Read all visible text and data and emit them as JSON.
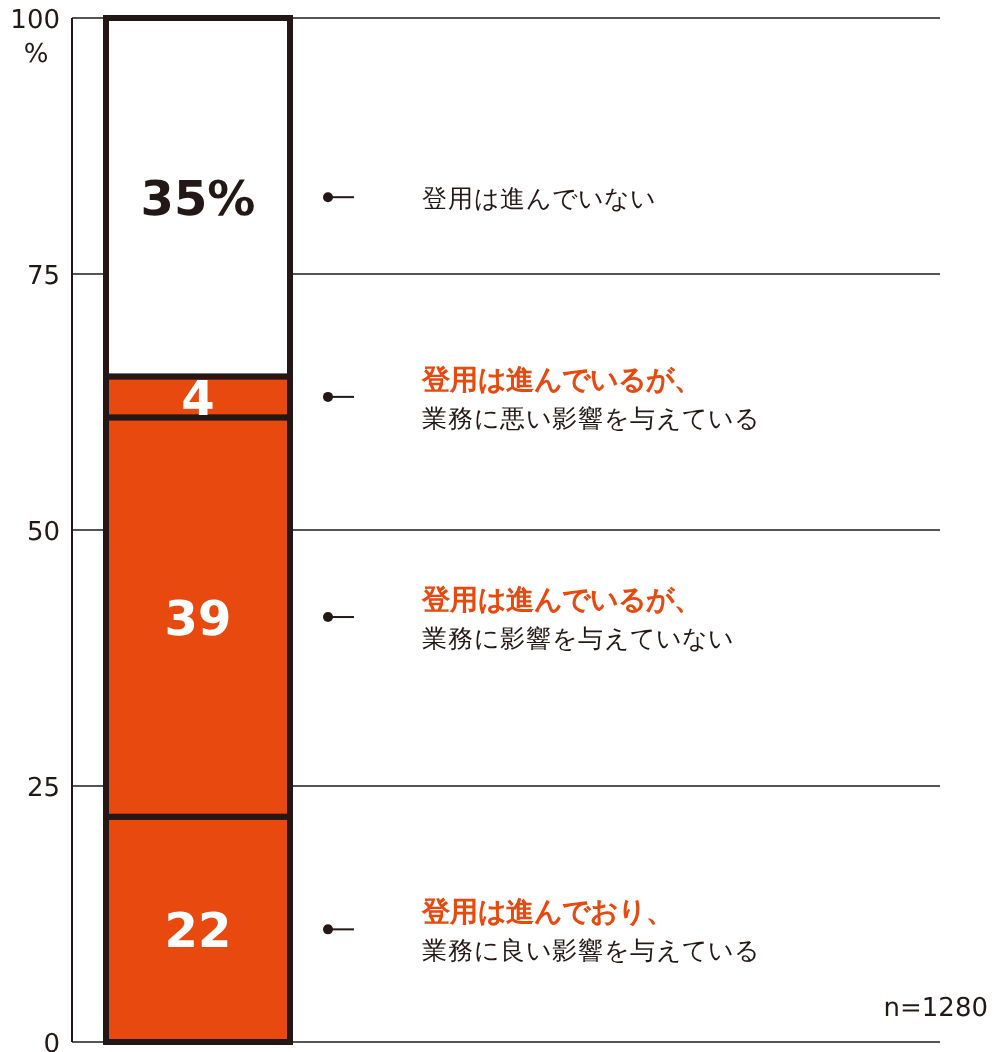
{
  "chart_data": {
    "type": "bar",
    "stacked": true,
    "categories": [
      null
    ],
    "ylabel": "%",
    "ylim": [
      0,
      100
    ],
    "yticks": [
      0,
      25,
      50,
      75,
      100
    ],
    "grid": "y",
    "legend": false,
    "series": [
      {
        "name": "登用は進んでおり、業務に良い影響を与えている",
        "color": "#e8490f",
        "values": [
          22
        ],
        "value_labels": [
          "22"
        ]
      },
      {
        "name": "登用は進んでいるが、業務に影響を与えていない",
        "color": "#e8490f",
        "values": [
          39
        ],
        "value_labels": [
          "39"
        ]
      },
      {
        "name": "登用は進んでいるが、業務に悪い影響を与えている",
        "color": "#e8490f",
        "values": [
          4
        ],
        "value_labels": [
          "4"
        ]
      },
      {
        "name": "登用は進んでいない",
        "color": "#ffffff",
        "values": [
          35
        ],
        "value_labels": [
          "35%"
        ]
      }
    ],
    "annotations": [
      "n=1280"
    ]
  }
}
